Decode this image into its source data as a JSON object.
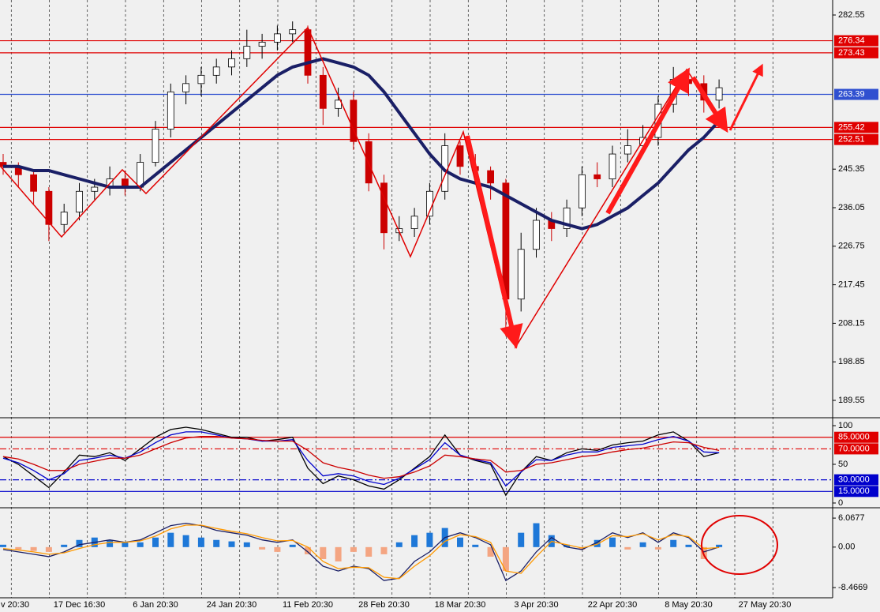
{
  "chart_data": [
    {
      "type": "candlestick",
      "categories": [
        "v 20:30",
        null,
        null,
        null,
        null,
        "17 Dec 16:30",
        null,
        null,
        null,
        null,
        "6 Jan 20:30",
        null,
        null,
        null,
        null,
        "24 Jan 20:30",
        null,
        null,
        null,
        null,
        "11 Feb 20:30",
        null,
        null,
        null,
        null,
        "28 Feb 20:30",
        null,
        null,
        null,
        null,
        "18 Mar 20:30",
        null,
        null,
        null,
        null,
        "3 Apr 20:30",
        null,
        null,
        null,
        null,
        "22 Apr 20:30",
        null,
        null,
        null,
        null,
        "8 May 20:30",
        null,
        null,
        null,
        null,
        "27 May 20:30"
      ],
      "open": [
        247,
        246,
        244,
        240,
        232,
        235,
        240,
        241,
        243,
        241,
        247,
        255,
        264,
        266,
        268,
        270,
        272,
        275,
        276,
        278,
        279,
        268,
        260,
        262,
        252,
        242,
        230,
        231,
        234,
        240,
        251,
        246,
        245,
        242,
        214,
        226,
        233,
        231,
        236,
        244,
        243,
        249,
        251,
        253,
        261,
        267,
        266,
        262,
        null,
        null,
        null
      ],
      "high": [
        249,
        247,
        245,
        241,
        237,
        242,
        243,
        246,
        245,
        249,
        257,
        266,
        268,
        270,
        272,
        274,
        279,
        278,
        280,
        281,
        280,
        270,
        265,
        264,
        254,
        244,
        234,
        236,
        242,
        254,
        252,
        249,
        246,
        243,
        230,
        236,
        235,
        238,
        246,
        247,
        251,
        255,
        256,
        263,
        270,
        269,
        268,
        267,
        null,
        null,
        null
      ],
      "low": [
        244,
        241,
        237,
        228,
        230,
        233,
        238,
        239,
        239,
        240,
        246,
        253,
        261,
        263,
        266,
        268,
        270,
        272,
        274,
        276,
        266,
        256,
        258,
        250,
        240,
        226,
        228,
        229,
        232,
        238,
        244,
        242,
        238,
        205,
        211,
        224,
        228,
        229,
        234,
        241,
        241,
        247,
        249,
        251,
        259,
        263,
        259,
        260,
        null,
        null,
        null
      ],
      "close": [
        246,
        244,
        240,
        232,
        235,
        240,
        241,
        243,
        241,
        247,
        255,
        264,
        266,
        268,
        270,
        272,
        275,
        276,
        278,
        279,
        268,
        260,
        262,
        252,
        242,
        230,
        231,
        234,
        240,
        251,
        246,
        245,
        242,
        214,
        226,
        233,
        231,
        236,
        244,
        243,
        249,
        251,
        253,
        261,
        267,
        266,
        262,
        265,
        null,
        null,
        null
      ],
      "up_color": "#ffffff",
      "down_color": "#cc0000",
      "series": [
        {
          "color": "#1a1f66",
          "values": [
            246,
            246,
            245,
            245,
            244,
            243,
            242,
            241,
            241,
            241,
            244,
            247,
            250,
            253,
            256,
            259,
            262,
            265,
            268,
            270,
            271,
            272,
            271,
            270,
            268,
            264,
            259,
            254,
            249,
            245,
            243,
            242,
            241,
            239,
            237,
            235,
            233,
            232,
            231,
            232,
            234,
            236,
            239,
            242,
            246,
            250,
            253,
            257,
            null,
            null,
            null
          ]
        }
      ],
      "ylim": [
        185.74,
        286.17
      ],
      "yticks": [
        282.55,
        245.35,
        236.05,
        226.75,
        217.45,
        208.15,
        198.85,
        189.55
      ],
      "hlines": [
        {
          "value": 276.34,
          "color": "#e00000"
        },
        {
          "value": 273.43,
          "color": "#e00000"
        },
        {
          "value": 263.39,
          "color": "#3050d0"
        },
        {
          "value": 255.42,
          "color": "#e00000"
        },
        {
          "value": 252.51,
          "color": "#e00000"
        }
      ]
    },
    {
      "type": "line",
      "series": [
        {
          "color": "#000000",
          "values": [
            60,
            50,
            35,
            20,
            40,
            62,
            60,
            65,
            55,
            70,
            85,
            95,
            98,
            95,
            90,
            85,
            85,
            80,
            82,
            85,
            45,
            25,
            35,
            30,
            22,
            18,
            30,
            45,
            60,
            88,
            62,
            55,
            50,
            10,
            40,
            60,
            55,
            65,
            70,
            68,
            75,
            78,
            80,
            88,
            92,
            80,
            60,
            65,
            null,
            null,
            null
          ]
        },
        {
          "color": "#0000cc",
          "values": [
            58,
            52,
            42,
            30,
            38,
            55,
            58,
            62,
            58,
            66,
            78,
            88,
            92,
            92,
            88,
            84,
            83,
            80,
            80,
            82,
            55,
            35,
            38,
            35,
            28,
            24,
            32,
            44,
            56,
            78,
            62,
            56,
            52,
            22,
            40,
            56,
            55,
            62,
            66,
            66,
            72,
            74,
            76,
            82,
            86,
            80,
            66,
            65,
            null,
            null,
            null
          ]
        },
        {
          "color": "#cc0000",
          "values": [
            60,
            57,
            50,
            42,
            42,
            50,
            54,
            58,
            58,
            62,
            70,
            78,
            84,
            86,
            86,
            84,
            83,
            81,
            80,
            80,
            68,
            52,
            46,
            42,
            36,
            32,
            34,
            40,
            48,
            62,
            60,
            57,
            55,
            40,
            42,
            50,
            52,
            56,
            60,
            62,
            66,
            69,
            71,
            75,
            79,
            78,
            72,
            68,
            null,
            null,
            null
          ]
        }
      ],
      "ylim": [
        -4.1,
        108.2
      ],
      "yticks": [
        100,
        50,
        0
      ],
      "hlines": [
        {
          "value": 85,
          "label": "85.0000",
          "color": "#e00000",
          "style": "solid"
        },
        {
          "value": 70,
          "label": "70.0000",
          "color": "#e00000",
          "style": "dashdot"
        },
        {
          "value": 30,
          "label": "30.0000",
          "color": "#0000cc",
          "style": "dashdot"
        },
        {
          "value": 15,
          "label": "15.0000",
          "color": "#0000cc",
          "style": "solid"
        }
      ]
    },
    {
      "type": "macd",
      "histogram": {
        "pos_color": "#1e78d8",
        "neg_color": "#f4a582",
        "values": [
          0.5,
          -0.5,
          -0.8,
          -1,
          0.5,
          1.5,
          2,
          1.5,
          1,
          1,
          2,
          3,
          2.5,
          2,
          1.5,
          1.2,
          1,
          -0.5,
          -1,
          0.5,
          -1.5,
          -2.5,
          -3,
          -1,
          -2,
          -1.5,
          1,
          2.5,
          3,
          4,
          2,
          0.5,
          -2,
          -5,
          3,
          5,
          2.5,
          0.5,
          -0.5,
          1.5,
          2,
          -0.5,
          1,
          -0.5,
          1.5,
          0.5,
          -2.5,
          0.5,
          null,
          null,
          null
        ]
      },
      "series": [
        {
          "color": "#1a1f66",
          "values": [
            -0.5,
            -1,
            -1.5,
            -2,
            -1,
            0.5,
            1,
            1.5,
            1,
            1.5,
            3,
            4.5,
            5,
            4.5,
            3.5,
            3,
            2.5,
            1.5,
            1,
            1.5,
            -1,
            -4,
            -5,
            -4,
            -4.5,
            -7,
            -6.5,
            -3,
            -1,
            2,
            3,
            2,
            0.5,
            -7,
            -5,
            -1,
            2,
            0,
            -0.5,
            1,
            3,
            2,
            3,
            1,
            3,
            2,
            -1,
            0,
            null,
            null,
            null
          ]
        },
        {
          "color": "#ff9900",
          "values": [
            -0.3,
            -0.6,
            -1,
            -1.5,
            -1.2,
            -0.3,
            0.5,
            1,
            1,
            1.3,
            2.3,
            3.8,
            4.6,
            4.6,
            3.9,
            3.3,
            2.8,
            2,
            1.3,
            1.4,
            0,
            -3,
            -4.5,
            -4.2,
            -4.3,
            -6.3,
            -6.6,
            -4,
            -1.8,
            1.2,
            2.6,
            2.2,
            1,
            -5,
            -5.5,
            -2,
            1.2,
            0.5,
            -0.2,
            0.6,
            2.4,
            2.2,
            2.8,
            1.5,
            2.6,
            2.2,
            -0.3,
            -0.1,
            null,
            null,
            null
          ]
        }
      ],
      "ylim": [
        -10.6,
        7.9
      ],
      "yticks": [
        6.0677,
        {
          "value": 0,
          "label": "0.00"
        },
        -8.4669
      ]
    }
  ]
}
